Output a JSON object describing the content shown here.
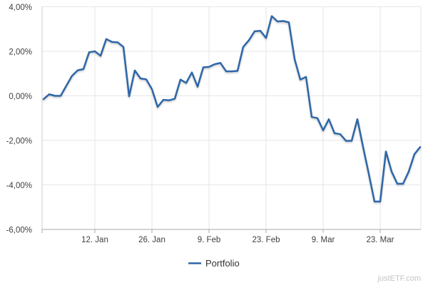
{
  "watermark": "justETF.com",
  "legend": {
    "label": "Portfolio"
  },
  "chart_data": {
    "type": "line",
    "title": "",
    "xlabel": "",
    "ylabel": "",
    "grid": true,
    "legend_position": "bottom-center",
    "ylim": [
      -6,
      4
    ],
    "y_tick_values": [
      4,
      2,
      0,
      -2,
      -4,
      -6
    ],
    "y_tick_labels": [
      "4,00%",
      "2,00%",
      "0,00%",
      "-2,00%",
      "-4,00%",
      "-6,00%"
    ],
    "x_tick_labels": [
      "12. Jan",
      "26. Jan",
      "9. Feb",
      "23. Feb",
      "9. Mar",
      "23. Mar"
    ],
    "x_tick_point_indices": [
      9,
      19,
      29,
      39,
      49,
      59
    ],
    "axis_color": "#aaaaaa",
    "grid_color": "#e6e6e6",
    "series": [
      {
        "name": "Portfolio",
        "color": "#2e66a7",
        "unit": "%",
        "values": [
          -0.15,
          0.07,
          0.0,
          0.0,
          0.45,
          0.9,
          1.15,
          1.2,
          1.96,
          2.0,
          1.8,
          2.55,
          2.42,
          2.4,
          2.2,
          -0.02,
          1.14,
          0.78,
          0.74,
          0.3,
          -0.5,
          -0.18,
          -0.2,
          -0.13,
          0.73,
          0.58,
          1.05,
          0.41,
          1.28,
          1.3,
          1.42,
          1.48,
          1.1,
          1.1,
          1.12,
          2.2,
          2.5,
          2.9,
          2.92,
          2.6,
          3.58,
          3.34,
          3.36,
          3.3,
          1.65,
          0.73,
          0.85,
          -0.95,
          -1.0,
          -1.55,
          -1.05,
          -1.68,
          -1.72,
          -2.02,
          -2.02,
          -1.05,
          -2.3,
          -3.5,
          -4.75,
          -4.75,
          -2.5,
          -3.4,
          -3.95,
          -3.95,
          -3.4,
          -2.62,
          -2.3
        ]
      }
    ]
  }
}
